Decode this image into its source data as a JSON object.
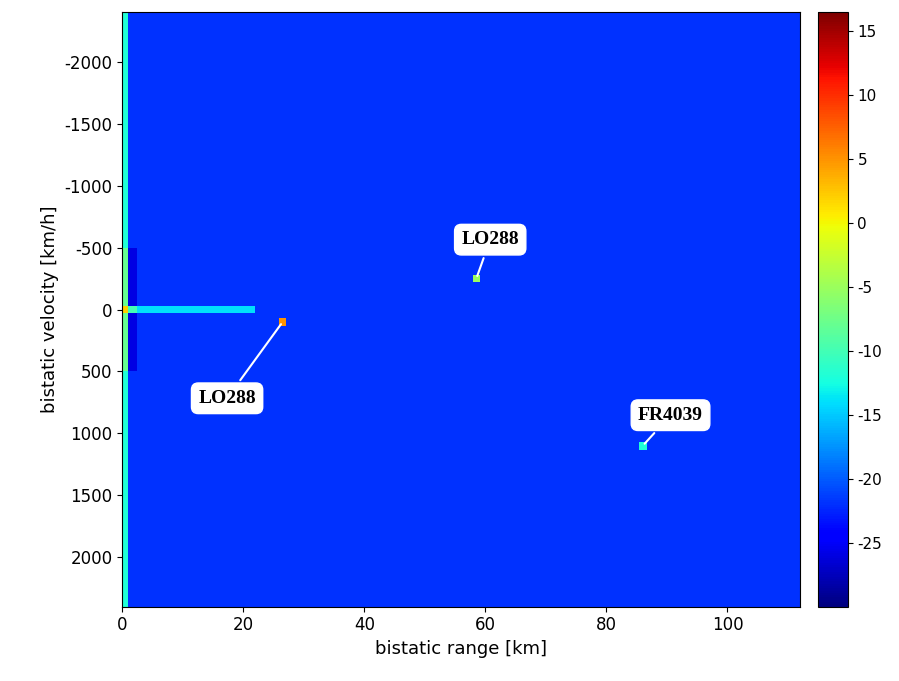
{
  "chart_data": {
    "type": "heatmap",
    "xlabel": "bistatic range [km]",
    "ylabel": "bistatic velocity [km/h]",
    "xlim": [
      0,
      112
    ],
    "ylim": [
      2400,
      -2400
    ],
    "xticks": [
      0,
      20,
      40,
      60,
      80,
      100
    ],
    "yticks": [
      -2000,
      -1500,
      -1000,
      -500,
      0,
      500,
      1000,
      1500,
      2000
    ],
    "x_edges": [
      0,
      1,
      2.5,
      22,
      112
    ],
    "y_edges": [
      -2400,
      -500,
      -30,
      30,
      500,
      2400
    ],
    "cells": [
      [
        -12,
        -22,
        -22,
        -22
      ],
      [
        -8,
        -26,
        -22,
        -22
      ],
      [
        2,
        -10,
        -14,
        -22
      ],
      [
        -8,
        -26,
        -22,
        -22
      ],
      [
        -12,
        -22,
        -22,
        -22
      ]
    ],
    "colorbar_range": [
      -30,
      16.5
    ],
    "colorbar_ticks": [
      -25,
      -20,
      -15,
      -10,
      -5,
      0,
      5,
      10,
      15
    ],
    "targets": [
      {
        "label": "LO288",
        "range": 26.5,
        "velocity": 100,
        "level": 5
      },
      {
        "label": "LO288",
        "range": 58.5,
        "velocity": -250,
        "level": -5
      },
      {
        "label": "FR4039",
        "range": 86,
        "velocity": 1100,
        "level": -12
      }
    ]
  }
}
